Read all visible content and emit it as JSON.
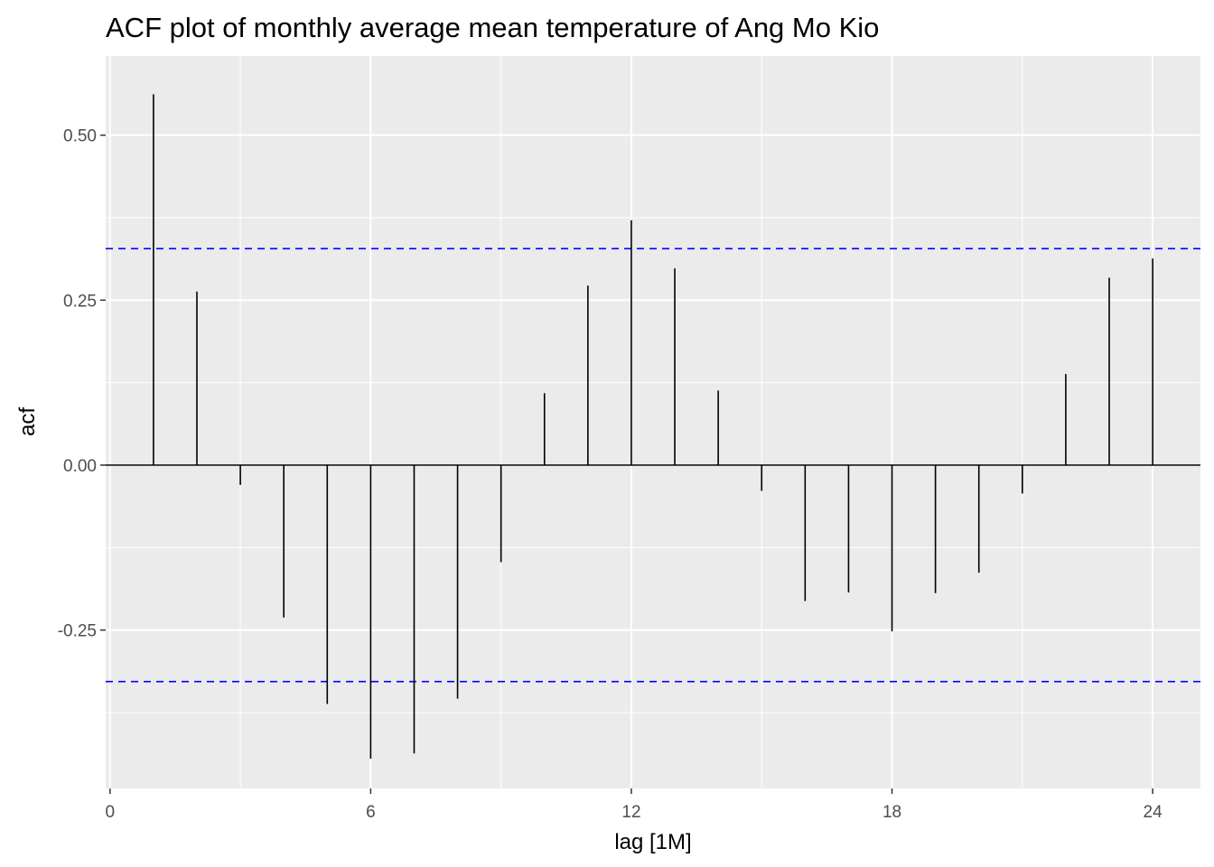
{
  "chart_data": {
    "type": "bar",
    "title": "ACF plot of monthly average mean temperature of Ang Mo Kio",
    "xlabel": "lag [1M]",
    "ylabel": "acf",
    "x": [
      1,
      2,
      3,
      4,
      5,
      6,
      7,
      8,
      9,
      10,
      11,
      12,
      13,
      14,
      15,
      16,
      17,
      18,
      19,
      20,
      21,
      22,
      23,
      24
    ],
    "values": [
      0.562,
      0.263,
      -0.03,
      -0.231,
      -0.362,
      -0.445,
      -0.437,
      -0.354,
      -0.147,
      0.109,
      0.272,
      0.371,
      0.298,
      0.113,
      -0.039,
      -0.206,
      -0.193,
      -0.252,
      -0.194,
      -0.163,
      -0.043,
      0.138,
      0.284,
      0.313
    ],
    "confidence_bound": 0.328,
    "xlim": [
      -0.1,
      25.1
    ],
    "ylim": [
      -0.49,
      0.62
    ],
    "x_ticks": [
      0,
      6,
      12,
      18,
      24
    ],
    "x_tick_labels": [
      "0",
      "6",
      "12",
      "18",
      "24"
    ],
    "y_ticks": [
      -0.25,
      0,
      0.25,
      0.5
    ],
    "y_tick_labels": [
      "-0.25",
      "0.00",
      "0.25",
      "0.50"
    ],
    "grid": true,
    "colors": {
      "panel_background": "#ebebeb",
      "grid_line": "#ffffff",
      "bar": "#000000",
      "confidence_line": "#0000ff"
    }
  }
}
